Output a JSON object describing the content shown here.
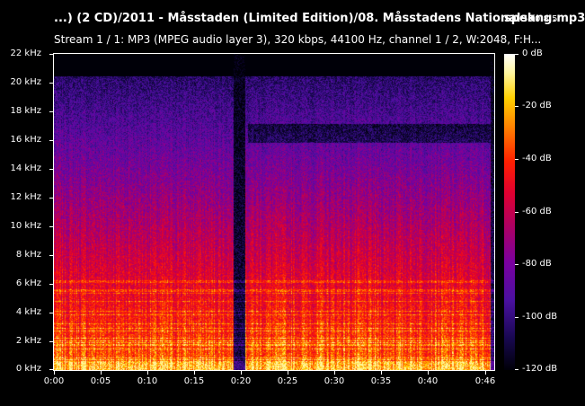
{
  "header": {
    "title": "...) (2 CD)/2011 - Måsstaden (Limited Edition)/08. Måsstadens Nationalsang.mp3",
    "app_name": "spek",
    "app_version": "0.8.5",
    "stream_info": "Stream 1 / 1: MP3 (MPEG audio layer 3), 320 kbps, 44100 Hz, channel 1 / 2, W:2048, F:H..."
  },
  "axes": {
    "frequency_labels": [
      "22 kHz",
      "20 kHz",
      "18 kHz",
      "16 kHz",
      "14 kHz",
      "12 kHz",
      "10 kHz",
      "8 kHz",
      "6 kHz",
      "4 kHz",
      "2 kHz",
      "0 kHz"
    ],
    "time_labels": [
      "0:00",
      "0:05",
      "0:10",
      "0:15",
      "0:20",
      "0:25",
      "0:30",
      "0:35",
      "0:40",
      "0:46"
    ],
    "db_labels": [
      "0 dB",
      "-20 dB",
      "-40 dB",
      "-60 dB",
      "-80 dB",
      "-100 dB",
      "-120 dB"
    ]
  },
  "colors": {
    "background": "#000000",
    "text": "#ffffff"
  }
}
